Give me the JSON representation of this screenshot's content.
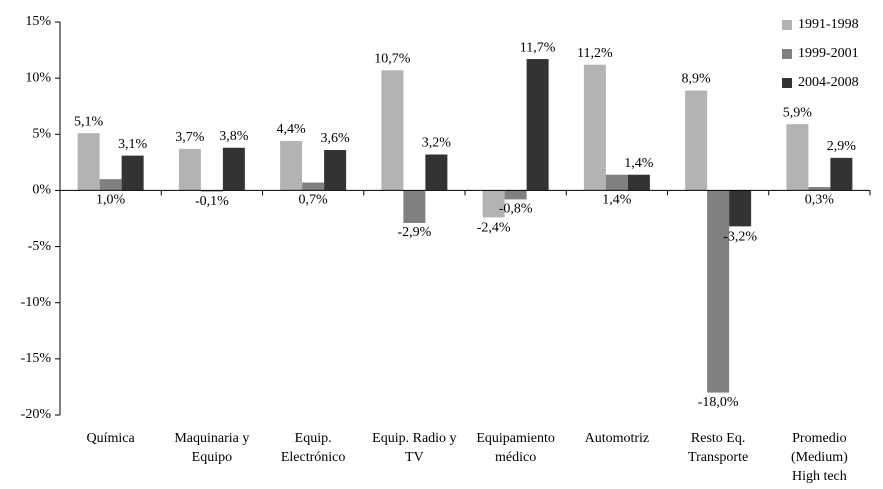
{
  "chart_data": {
    "type": "bar",
    "categories": [
      "Química",
      "Maquinaria y Equipo",
      "Equip. Electrónico",
      "Equip. Radio y TV",
      "Equipamiento médico",
      "Automotriz",
      "Resto Eq. Transporte",
      "Promedio (Medium) High tech"
    ],
    "series": [
      {
        "name": "1991-1998",
        "color": "#b3b3b3",
        "values": [
          5.1,
          3.7,
          4.4,
          10.7,
          -2.4,
          11.2,
          8.9,
          5.9
        ],
        "value_labels": [
          "5,1%",
          "3,7%",
          "4,4%",
          "10,7%",
          "-2,4%",
          "11,2%",
          "8,9%",
          "5,9%"
        ]
      },
      {
        "name": "1999-2001",
        "color": "#808080",
        "values": [
          1.0,
          -0.1,
          0.7,
          -2.9,
          -0.8,
          1.4,
          -18.0,
          0.3
        ],
        "value_labels": [
          "1,0%",
          "-0,1%",
          "0,7%",
          "-2,9%",
          "-0,8%",
          "1,4%",
          "-18,0%",
          "0,3%"
        ]
      },
      {
        "name": "2004-2008",
        "color": "#333333",
        "values": [
          3.1,
          3.8,
          3.6,
          3.2,
          11.7,
          1.4,
          -3.2,
          2.9
        ],
        "value_labels": [
          "3,1%",
          "3,8%",
          "3,6%",
          "3,2%",
          "11,7%",
          "1,4%",
          "-3,2%",
          "2,9%"
        ]
      }
    ],
    "ylim": [
      -20,
      15
    ],
    "yticks": [
      {
        "value": -20,
        "label": "-20%"
      },
      {
        "value": -15,
        "label": "-15%"
      },
      {
        "value": -10,
        "label": "-10%"
      },
      {
        "value": -5,
        "label": "-5%"
      },
      {
        "value": 0,
        "label": "0%"
      },
      {
        "value": 5,
        "label": "5%"
      },
      {
        "value": 10,
        "label": "10%"
      },
      {
        "value": 15,
        "label": "15%"
      }
    ],
    "legend": "top-right"
  }
}
